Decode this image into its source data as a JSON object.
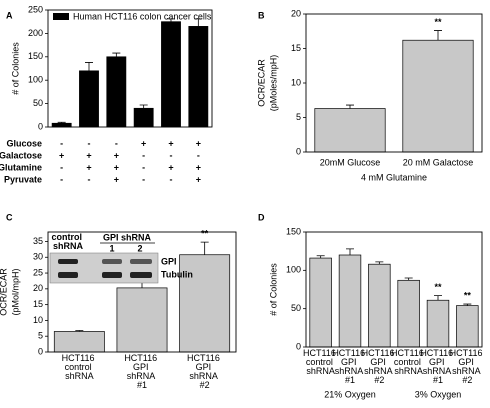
{
  "chart_data": [
    {
      "panel": "A",
      "type": "bar",
      "ylabel": [
        "# of Colonies"
      ],
      "ylim": [
        0,
        250
      ],
      "yticks": [
        0,
        50,
        100,
        150,
        200,
        250
      ],
      "series": [
        {
          "name": "Human HCT116 colon cancer cells",
          "color": "#000000",
          "values": [
            8,
            120,
            150,
            40,
            225,
            215
          ],
          "errors": [
            2,
            18,
            8,
            7,
            6,
            16
          ]
        }
      ],
      "conditions": [
        {
          "name": "Glucose",
          "values": [
            "-",
            "-",
            "-",
            "+",
            "+",
            "+"
          ]
        },
        {
          "name": "Galactose",
          "values": [
            "+",
            "+",
            "+",
            "-",
            "-",
            "-"
          ]
        },
        {
          "name": "Glutamine",
          "values": [
            "-",
            "+",
            "+",
            "-",
            "+",
            "+"
          ]
        },
        {
          "name": "Pyruvate",
          "values": [
            "-",
            "-",
            "+",
            "-",
            "-",
            "+"
          ]
        }
      ]
    },
    {
      "panel": "B",
      "type": "bar",
      "ylabel": [
        "OCR/ECAR",
        "(pMoles/mpH)"
      ],
      "ylim": [
        0,
        20
      ],
      "yticks": [
        0,
        5,
        10,
        15,
        20
      ],
      "categories": [
        "20mM Glucose",
        "20 mM Galactose"
      ],
      "values": [
        6.3,
        16.2
      ],
      "errors": [
        0.5,
        1.4
      ],
      "significance": [
        null,
        "**"
      ],
      "xlabel": "4 mM Glutamine",
      "color": "#c8c8c8"
    },
    {
      "panel": "C",
      "type": "bar",
      "ylabel": [
        "OCR/ECAR",
        "(pMol/mpH)"
      ],
      "ylim": [
        0,
        38
      ],
      "yticks": [
        0,
        5,
        10,
        15,
        20,
        25,
        30,
        35
      ],
      "categories": [
        "HCT116 control shRNA",
        "HCT116 GPI shRNA #1",
        "HCT116 GPI shRNA #2"
      ],
      "values": [
        6.5,
        20.3,
        30.8
      ],
      "errors": [
        0.3,
        4.8,
        4
      ],
      "significance": [
        null,
        "**",
        "**"
      ],
      "color": "#c8c8c8",
      "blot": {
        "header": [
          "control shRNA",
          "GPI shRNA"
        ],
        "lanes": [
          "1",
          "2"
        ],
        "bands": [
          "GPI",
          "Tubulin"
        ]
      }
    },
    {
      "panel": "D",
      "type": "bar",
      "ylabel": [
        "# of Colonies"
      ],
      "ylim": [
        0,
        150
      ],
      "yticks": [
        0,
        50,
        100,
        150
      ],
      "categories": [
        "HCT116 control shRNA",
        "HCT116 GPI shRNA #1",
        "HCT116 GPI shRNA #2",
        "HCT116 control shRNA",
        "HCT116 GPI shRNA #1",
        "HCT116 GPI shRNA #2"
      ],
      "values": [
        116,
        120,
        108,
        87,
        61,
        54
      ],
      "errors": [
        3,
        8,
        3,
        3,
        6,
        2
      ],
      "significance": [
        null,
        null,
        null,
        null,
        "**",
        "**"
      ],
      "groups": [
        "21% Oxygen",
        "3% Oxygen"
      ],
      "color": "#c8c8c8"
    }
  ]
}
